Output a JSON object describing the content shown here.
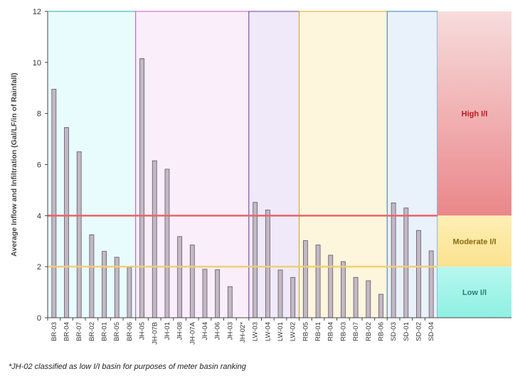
{
  "chart_data": {
    "type": "bar",
    "ylabel": "Average Inflow and Infiltration (Gal/LF/in of Rainfall)",
    "ylim": [
      0,
      12
    ],
    "yticks": [
      0,
      2,
      4,
      6,
      8,
      10,
      12
    ],
    "categories": [
      "BR-03",
      "BR-04",
      "BR-07",
      "BR-02",
      "BR-01",
      "BR-05",
      "BR-06",
      "JH-05",
      "JH-07B",
      "JH-01",
      "JH-08",
      "JH-07A",
      "JH-04",
      "JH-06",
      "JH-03",
      "JH-02*",
      "LW-03",
      "LW-04",
      "LW-01",
      "LW-02",
      "RB-05",
      "RB-01",
      "RB-04",
      "RB-03",
      "RB-07",
      "RB-02",
      "RB-06",
      "SD-03",
      "SD-01",
      "SD-02",
      "SD-04"
    ],
    "values": [
      8.95,
      7.45,
      6.5,
      3.25,
      2.6,
      2.37,
      1.97,
      10.15,
      6.15,
      5.82,
      3.18,
      2.85,
      1.9,
      1.88,
      1.22,
      0,
      4.52,
      4.22,
      1.87,
      1.58,
      3.02,
      2.85,
      2.45,
      2.2,
      1.58,
      1.45,
      0.92,
      4.5,
      4.3,
      3.42,
      2.62
    ],
    "groups": [
      {
        "prefix": "BR",
        "count": 7,
        "fill": "#e8fbfd",
        "stroke": "#2aa7a6"
      },
      {
        "prefix": "JH",
        "count": 9,
        "fill": "#fbeefb",
        "stroke": "#c45ac6"
      },
      {
        "prefix": "LW",
        "count": 4,
        "fill": "#efe9f9",
        "stroke": "#6b3fa0"
      },
      {
        "prefix": "RB",
        "count": 7,
        "fill": "#fdf5dc",
        "stroke": "#d9a22b"
      },
      {
        "prefix": "SD",
        "count": 4,
        "fill": "#e9f1fb",
        "stroke": "#3a7dbf"
      }
    ],
    "thresholds": [
      {
        "value": 4,
        "color": "#e8646a"
      },
      {
        "value": 2,
        "color": "#f0cf74"
      }
    ],
    "zones": [
      {
        "label": "High I/I",
        "from": 4,
        "to": 12,
        "color": "#c0151f"
      },
      {
        "label": "Moderate I/I",
        "from": 2,
        "to": 4,
        "color": "#8a6a12"
      },
      {
        "label": "Low I/I",
        "from": 0,
        "to": 2,
        "color": "#2a7f7a"
      }
    ],
    "bar_fill": "#c3b8c6",
    "bar_stroke": "#5e5a62"
  },
  "footnote": "*JH-02 classified as low I/I basin for purposes of meter basin ranking"
}
